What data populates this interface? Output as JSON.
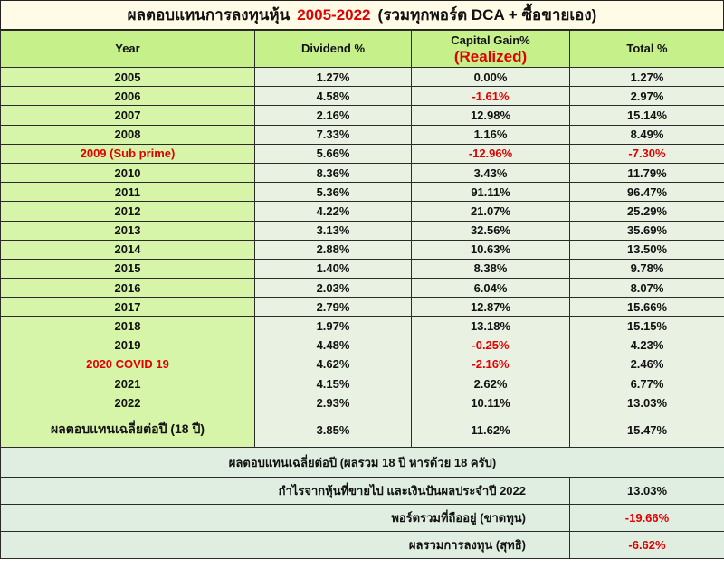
{
  "title": {
    "prefix": "ผลตอบแทนการลงทุนหุ้น",
    "years": "2005-2022",
    "suffix": "(รวมทุกพอร์ต DCA + ซื้อขายเอง)"
  },
  "headers": {
    "year": "Year",
    "dividend": "Dividend %",
    "capital_gain": "Capital Gain%",
    "capital_gain_sub": "(Realized)",
    "total": "Total %"
  },
  "rows": [
    {
      "year": "2005",
      "dividend": "1.27%",
      "capital": "0.00%",
      "total": "1.27%"
    },
    {
      "year": "2006",
      "dividend": "4.58%",
      "capital": "-1.61%",
      "total": "2.97%"
    },
    {
      "year": "2007",
      "dividend": "2.16%",
      "capital": "12.98%",
      "total": "15.14%"
    },
    {
      "year": "2008",
      "dividend": "7.33%",
      "capital": "1.16%",
      "total": "8.49%"
    },
    {
      "year": "2009 (Sub prime)",
      "dividend": "5.66%",
      "capital": "-12.96%",
      "total": "-7.30%"
    },
    {
      "year": "2010",
      "dividend": "8.36%",
      "capital": "3.43%",
      "total": "11.79%"
    },
    {
      "year": "2011",
      "dividend": "5.36%",
      "capital": "91.11%",
      "total": "96.47%"
    },
    {
      "year": "2012",
      "dividend": "4.22%",
      "capital": "21.07%",
      "total": "25.29%"
    },
    {
      "year": "2013",
      "dividend": "3.13%",
      "capital": "32.56%",
      "total": "35.69%"
    },
    {
      "year": "2014",
      "dividend": "2.88%",
      "capital": "10.63%",
      "total": "13.50%"
    },
    {
      "year": "2015",
      "dividend": "1.40%",
      "capital": "8.38%",
      "total": "9.78%"
    },
    {
      "year": "2016",
      "dividend": "2.03%",
      "capital": "6.04%",
      "total": "8.07%"
    },
    {
      "year": "2017",
      "dividend": "2.79%",
      "capital": "12.87%",
      "total": "15.66%"
    },
    {
      "year": "2018",
      "dividend": "1.97%",
      "capital": "13.18%",
      "total": "15.15%"
    },
    {
      "year": "2019",
      "dividend": "4.48%",
      "capital": "-0.25%",
      "total": "4.23%"
    },
    {
      "year": "2020 COVID 19",
      "dividend": "4.62%",
      "capital": "-2.16%",
      "total": "2.46%"
    },
    {
      "year": "2021",
      "dividend": "4.15%",
      "capital": "2.62%",
      "total": "6.77%"
    },
    {
      "year": "2022",
      "dividend": "2.93%",
      "capital": "10.11%",
      "total": "13.03%"
    }
  ],
  "average": {
    "label": "ผลตอบแทนเฉลี่ยต่อปี  (18 ปี)",
    "dividend": "3.85%",
    "capital": "11.62%",
    "total": "15.47%"
  },
  "average_note": "ผลตอบแทนเฉลี่ยต่อปี (ผลรวม 18 ปี หารด้วย 18 ครับ)",
  "summary": [
    {
      "label": "กำไรจากหุ้นที่ขายไป และเงินปันผลประจำปี 2022",
      "value": "13.03%",
      "negative": false
    },
    {
      "label": "พอร์ตรวมที่ถืออยู่ (ขาดทุน)",
      "value": "-19.66%",
      "negative": true
    },
    {
      "label": "ผลรวมการลงทุน (สุทธิ)",
      "value": "-6.62%",
      "negative": true
    }
  ],
  "colors": {
    "negative": "#e00000",
    "header_bg": "#c5f08a",
    "year_bg": "#d6f5a8",
    "value_bg": "#e9f1e3",
    "note": "#1a1adf"
  }
}
